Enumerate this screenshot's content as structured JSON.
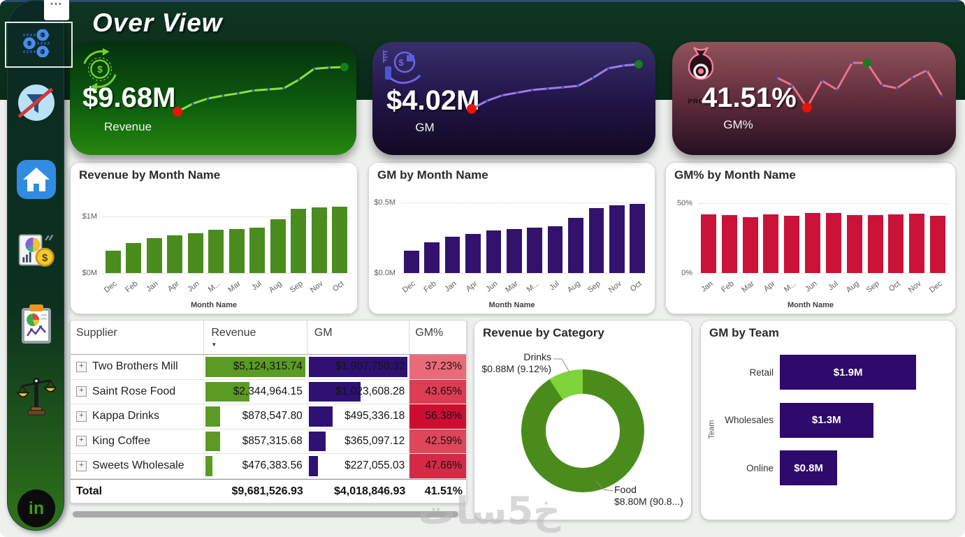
{
  "page": {
    "title": "Over View",
    "more_options_icon": "•••",
    "watermark": "خ5سات"
  },
  "sidebar": {
    "linkedin_label": "in",
    "items": [
      {
        "name": "slicer-settings"
      },
      {
        "name": "clear-filter"
      },
      {
        "name": "home"
      },
      {
        "name": "financial-report"
      },
      {
        "name": "report-clipboard"
      },
      {
        "name": "balance-scale"
      },
      {
        "name": "linkedin"
      }
    ]
  },
  "kpis": [
    {
      "value": "$9.68M",
      "label": "Revenue",
      "line_color": "#8de03c",
      "trend": [
        0.39,
        0.53,
        0.62,
        0.67,
        0.71,
        0.76,
        0.78,
        0.8,
        0.95,
        1.14,
        1.16,
        1.17
      ]
    },
    {
      "value": "$4.02M",
      "label": "GM",
      "line_color": "#9d7ce8",
      "trend": [
        0.16,
        0.22,
        0.26,
        0.28,
        0.3,
        0.31,
        0.32,
        0.33,
        0.39,
        0.46,
        0.48,
        0.49
      ]
    },
    {
      "value": "41.51%",
      "label": "GM%",
      "badge": "PROFIT",
      "line_color": "#e8718b",
      "trend": [
        42,
        41.5,
        40,
        41.8,
        41.2,
        43,
        43,
        41.5,
        41.3,
        42,
        42.5,
        40.8
      ]
    }
  ],
  "chart_data": [
    {
      "type": "bar",
      "title": "Revenue by Month Name",
      "xlabel": "Month Name",
      "categories": [
        "Dec",
        "Feb",
        "Jan",
        "Apr",
        "Jun",
        "M...",
        "Mar",
        "Jul",
        "Aug",
        "Sep",
        "Nov",
        "Oct"
      ],
      "values": [
        0.39,
        0.53,
        0.62,
        0.67,
        0.71,
        0.76,
        0.78,
        0.8,
        0.95,
        1.14,
        1.16,
        1.17
      ],
      "unit": "$M",
      "ylim": [
        0,
        1.53
      ],
      "yticks": [
        {
          "label": "$1M",
          "value": 1
        },
        {
          "label": "$0M",
          "value": 0
        }
      ],
      "bar_color": "#4a8c1e"
    },
    {
      "type": "bar",
      "title": "GM by Month Name",
      "xlabel": "Month Name",
      "categories": [
        "Dec",
        "Feb",
        "Jan",
        "Apr",
        "Jun",
        "Mar",
        "M...",
        "Jul",
        "Aug",
        "Sep",
        "Nov",
        "Oct"
      ],
      "values": [
        0.16,
        0.22,
        0.26,
        0.28,
        0.3,
        0.31,
        0.32,
        0.33,
        0.39,
        0.46,
        0.48,
        0.49
      ],
      "unit": "$M",
      "ylim": [
        0,
        0.614
      ],
      "yticks": [
        {
          "label": "$0.5M",
          "value": 0.5
        },
        {
          "label": "$0.0M",
          "value": 0
        }
      ],
      "bar_color": "#33126e"
    },
    {
      "type": "bar",
      "title": "GM% by Month Name",
      "xlabel": "Month Name",
      "categories": [
        "Jan",
        "Feb",
        "Mar",
        "Apr",
        "M...",
        "Jun",
        "Jul",
        "Aug",
        "Sep",
        "Oct",
        "Nov",
        "Dec"
      ],
      "values": [
        42,
        41.5,
        40,
        41.8,
        41.2,
        43,
        43,
        41.5,
        41.3,
        42,
        42.5,
        40.8
      ],
      "unit": "%",
      "ylim": [
        0,
        62
      ],
      "yticks": [
        {
          "label": "50%",
          "value": 50
        },
        {
          "label": "0%",
          "value": 0
        }
      ],
      "bar_color": "#cb1238"
    },
    {
      "type": "pie",
      "title": "Revenue by Category",
      "slices": [
        {
          "label": "Food",
          "value": 8.8,
          "pct": 90.88,
          "value_text": "$8.80M (90.8...)",
          "color": "#4a8c1c"
        },
        {
          "label": "Drinks",
          "value": 0.88,
          "pct": 9.12,
          "value_text": "$0.88M (9.12%)",
          "color": "#7fd33b"
        }
      ]
    },
    {
      "type": "bar",
      "orientation": "horizontal",
      "title": "GM by Team",
      "ylabel": "Team",
      "categories": [
        "Retail",
        "Wholesales",
        "Online"
      ],
      "values": [
        1.9,
        1.3,
        0.8
      ],
      "value_labels": [
        "$1.9M",
        "$1.3M",
        "$0.8M"
      ],
      "bar_color": "#2d0a6b",
      "xmax": 1.9
    }
  ],
  "table": {
    "columns": [
      "Supplier",
      "Revenue",
      "GM",
      "GM%"
    ],
    "sort_icon": "▼",
    "expand_icon": "+",
    "bar_colors": {
      "revenue": "#5b9b24",
      "gm": "#2e1173"
    },
    "rows": [
      {
        "supplier": "Two Brothers Mill",
        "revenue": "$5,124,315.74",
        "revenue_num": 5124315.74,
        "gm": "$1,907,750.32",
        "gm_num": 1907750.32,
        "gm_pct": "37.23%",
        "gm_pct_bg": "#e96a78"
      },
      {
        "supplier": "Saint Rose Food",
        "revenue": "$2,344,964.15",
        "revenue_num": 2344964.15,
        "gm": "$1,023,608.28",
        "gm_num": 1023608.28,
        "gm_pct": "43.65%",
        "gm_pct_bg": "#dc3d55"
      },
      {
        "supplier": "Kappa Drinks",
        "revenue": "$878,547.80",
        "revenue_num": 878547.8,
        "gm": "$495,336.18",
        "gm_num": 495336.18,
        "gm_pct": "56.38%",
        "gm_pct_bg": "#ce0d33"
      },
      {
        "supplier": "King Coffee",
        "revenue": "$857,315.68",
        "revenue_num": 857315.68,
        "gm": "$365,097.12",
        "gm_num": 365097.12,
        "gm_pct": "42.59%",
        "gm_pct_bg": "#dd4759"
      },
      {
        "supplier": "Sweets Wholesale",
        "revenue": "$476,383.56",
        "revenue_num": 476383.56,
        "gm": "$227,055.03",
        "gm_num": 227055.03,
        "gm_pct": "47.66%",
        "gm_pct_bg": "#d52a46"
      }
    ],
    "total": {
      "supplier": "Total",
      "revenue": "$9,681,526.93",
      "gm": "$4,018,846.93",
      "gm_pct": "41.51%"
    }
  }
}
